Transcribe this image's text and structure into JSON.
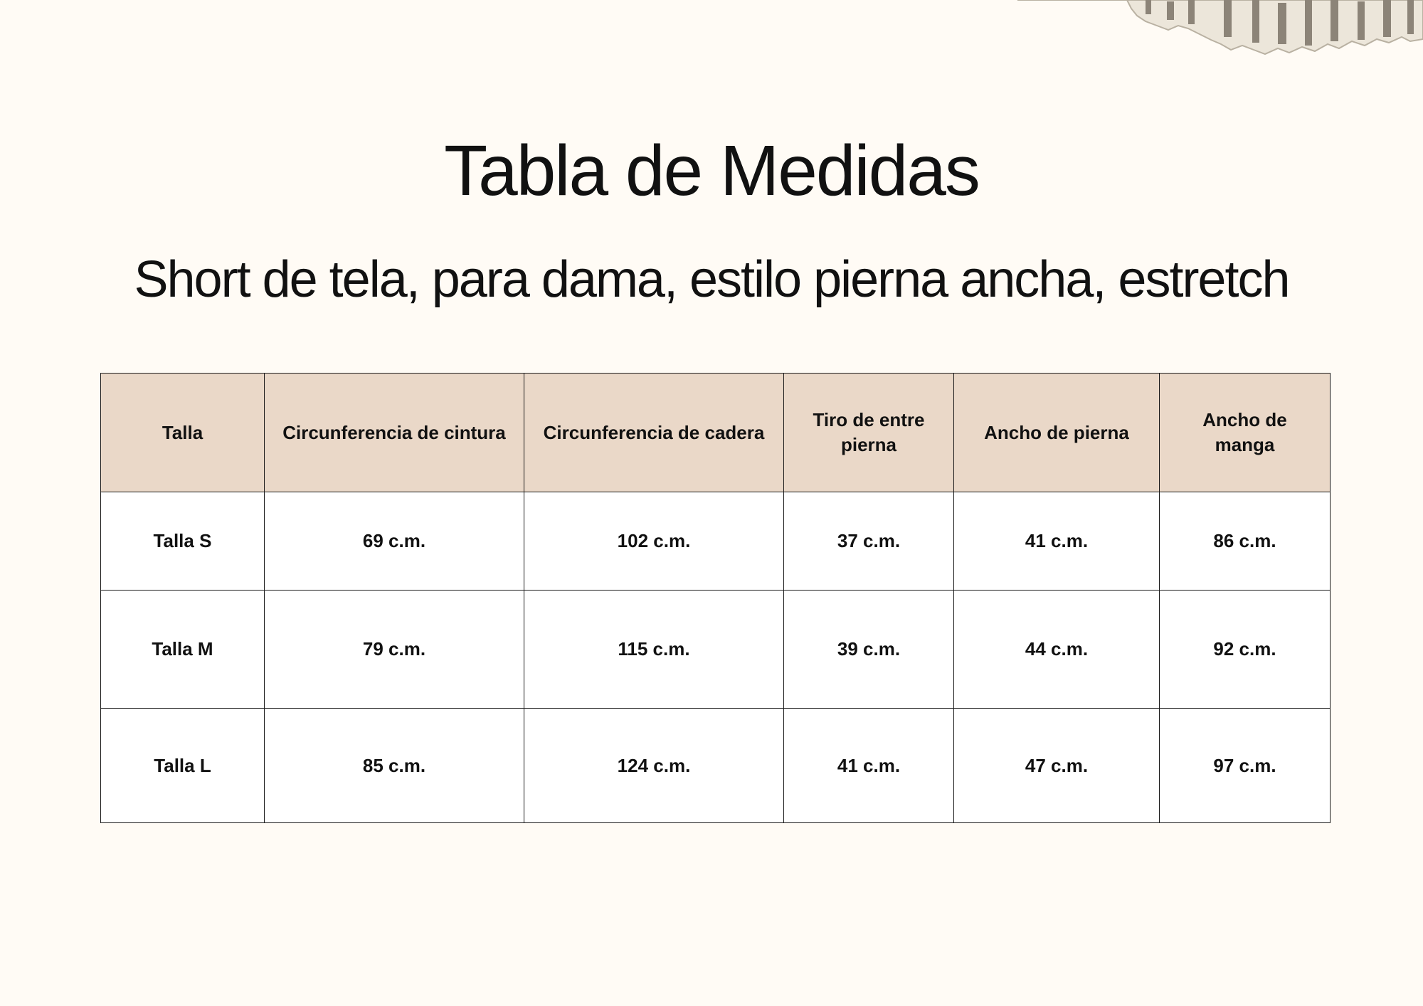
{
  "document": {
    "title": "Tabla de Medidas",
    "subtitle": "Short de tela, para dama, estilo pierna ancha, estretch"
  },
  "table": {
    "headers": [
      "Talla",
      "Circunferencia de cintura",
      "Circunferencia de cadera",
      "Tiro de entre pierna",
      "Ancho de pierna",
      "Ancho de manga"
    ],
    "rows": [
      [
        "Talla S",
        "69 c.m.",
        "102 c.m.",
        "37 c.m.",
        "41 c.m.",
        "86 c.m."
      ],
      [
        "Talla M",
        "79 c.m.",
        "115 c.m.",
        "39 c.m.",
        "44 c.m.",
        "92 c.m."
      ],
      [
        "Talla L",
        "85 c.m.",
        "124 c.m.",
        "41 c.m.",
        "47 c.m.",
        "97 c.m."
      ]
    ]
  },
  "colors": {
    "background": "#fffbf5",
    "header_fill": "#ead8c8",
    "border": "#1a1a1a"
  }
}
